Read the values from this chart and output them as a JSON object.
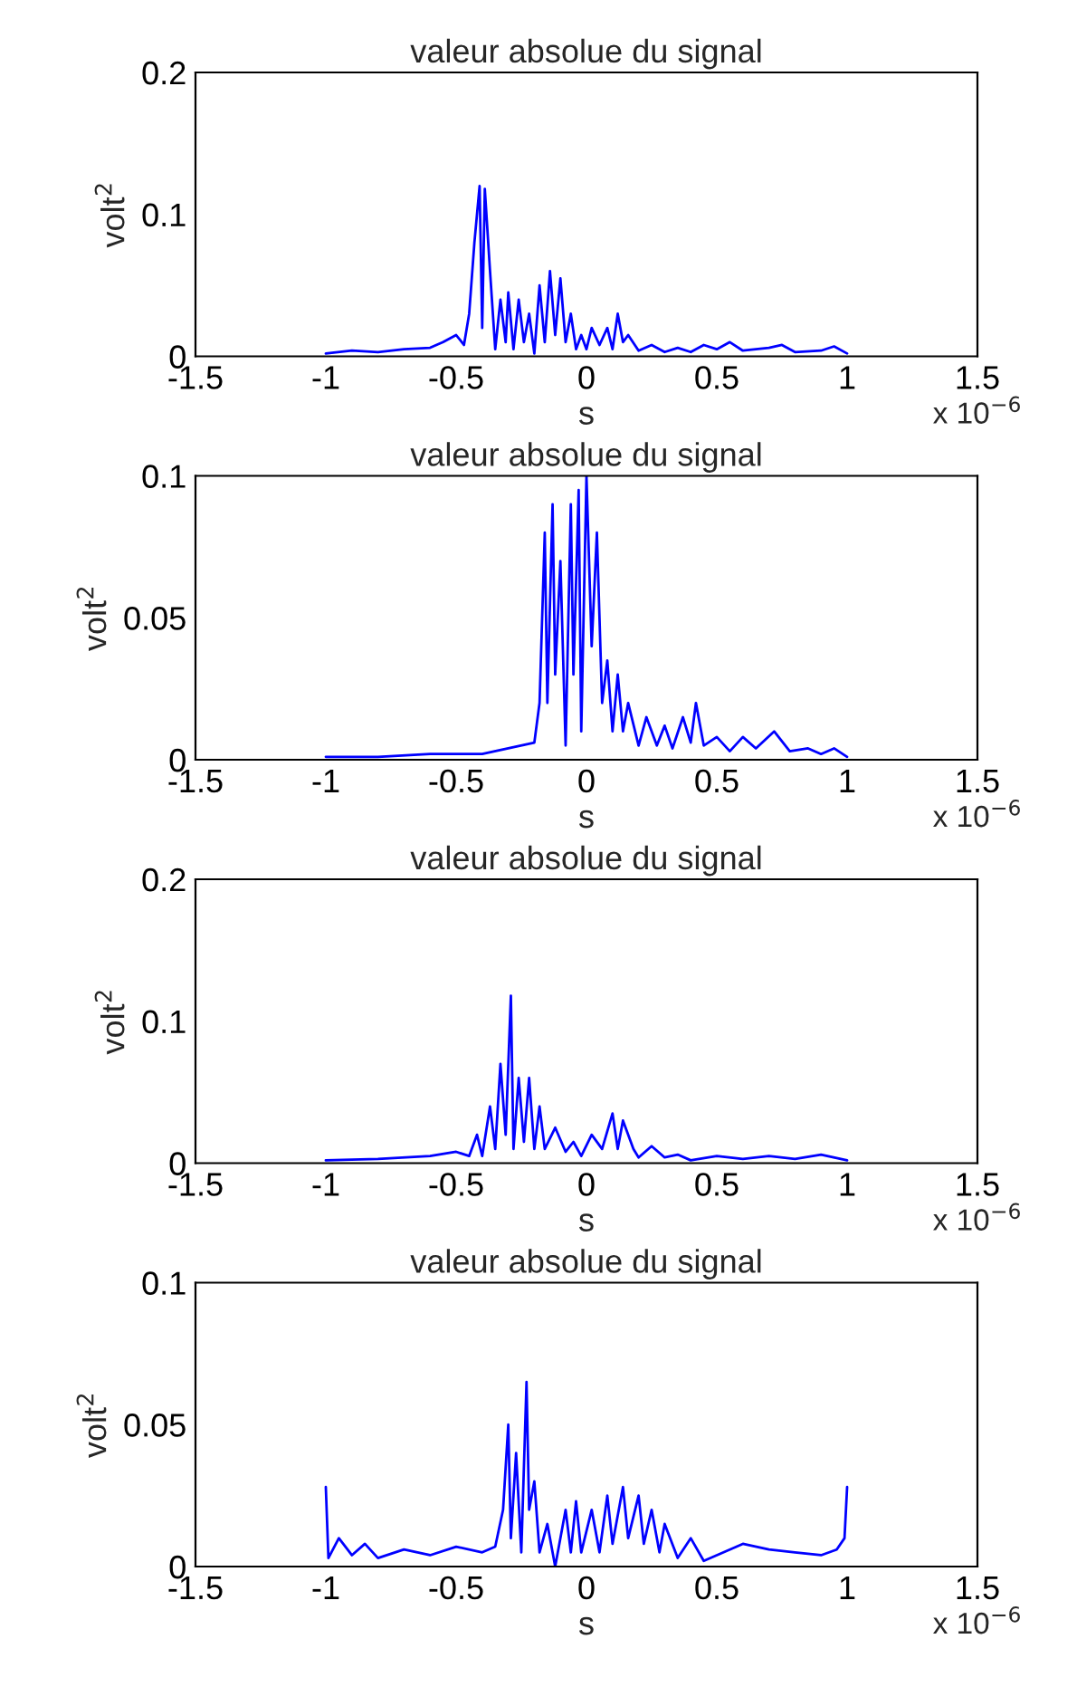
{
  "chart_data": [
    {
      "type": "line",
      "title": "valeur absolue du signal",
      "xlabel": "s",
      "ylabel": "volt$^{2}$",
      "annotations": [
        "x 10$^{−6}$"
      ],
      "grid": false,
      "marker": "none",
      "line_style": "solid",
      "xlim": [
        -1.5,
        1.5
      ],
      "xticks": [
        -1.5,
        -1,
        -0.5,
        0,
        0.5,
        1,
        1.5
      ],
      "ylim": [
        0,
        0.2
      ],
      "yticks": [
        0,
        0.1,
        0.2
      ],
      "series": [
        {
          "color": "#0000ff",
          "x": [
            -1.0,
            -0.9,
            -0.8,
            -0.7,
            -0.6,
            -0.55,
            -0.5,
            -0.47,
            -0.45,
            -0.43,
            -0.41,
            -0.4,
            -0.39,
            -0.37,
            -0.35,
            -0.33,
            -0.31,
            -0.3,
            -0.28,
            -0.26,
            -0.24,
            -0.22,
            -0.2,
            -0.18,
            -0.16,
            -0.14,
            -0.12,
            -0.1,
            -0.08,
            -0.06,
            -0.04,
            -0.02,
            0,
            0.02,
            0.05,
            0.08,
            0.1,
            0.12,
            0.14,
            0.16,
            0.2,
            0.25,
            0.3,
            0.35,
            0.4,
            0.45,
            0.5,
            0.55,
            0.6,
            0.7,
            0.75,
            0.8,
            0.9,
            0.95,
            1.0
          ],
          "values": [
            0.002,
            0.004,
            0.003,
            0.005,
            0.006,
            0.01,
            0.015,
            0.008,
            0.03,
            0.08,
            0.12,
            0.02,
            0.118,
            0.06,
            0.005,
            0.04,
            0.01,
            0.045,
            0.005,
            0.04,
            0.01,
            0.03,
            0.002,
            0.05,
            0.01,
            0.06,
            0.015,
            0.055,
            0.01,
            0.03,
            0.005,
            0.015,
            0.005,
            0.02,
            0.008,
            0.02,
            0.005,
            0.03,
            0.01,
            0.015,
            0.004,
            0.008,
            0.003,
            0.006,
            0.003,
            0.008,
            0.005,
            0.01,
            0.004,
            0.006,
            0.008,
            0.003,
            0.004,
            0.007,
            0.002
          ]
        }
      ]
    },
    {
      "type": "line",
      "title": "valeur absolue du signal",
      "xlabel": "s",
      "ylabel": "volt$^{2}$",
      "annotations": [
        "x 10$^{−6}$"
      ],
      "grid": false,
      "marker": "none",
      "line_style": "solid",
      "xlim": [
        -1.5,
        1.5
      ],
      "xticks": [
        -1.5,
        -1,
        -0.5,
        0,
        0.5,
        1,
        1.5
      ],
      "ylim": [
        0,
        0.1
      ],
      "yticks": [
        0,
        0.05,
        0.1
      ],
      "series": [
        {
          "color": "#0000ff",
          "x": [
            -1,
            -0.8,
            -0.6,
            -0.4,
            -0.3,
            -0.2,
            -0.18,
            -0.16,
            -0.15,
            -0.13,
            -0.12,
            -0.1,
            -0.08,
            -0.06,
            -0.05,
            -0.03,
            -0.02,
            0,
            0.02,
            0.04,
            0.06,
            0.08,
            0.1,
            0.12,
            0.14,
            0.16,
            0.2,
            0.23,
            0.27,
            0.3,
            0.33,
            0.37,
            0.4,
            0.42,
            0.45,
            0.5,
            0.55,
            0.6,
            0.65,
            0.72,
            0.78,
            0.85,
            0.9,
            0.95,
            1.0
          ],
          "values": [
            0.001,
            0.001,
            0.002,
            0.002,
            0.004,
            0.006,
            0.02,
            0.08,
            0.02,
            0.09,
            0.03,
            0.07,
            0.005,
            0.09,
            0.03,
            0.095,
            0.01,
            0.1,
            0.04,
            0.08,
            0.02,
            0.035,
            0.01,
            0.03,
            0.01,
            0.02,
            0.005,
            0.015,
            0.005,
            0.012,
            0.004,
            0.015,
            0.006,
            0.02,
            0.005,
            0.008,
            0.003,
            0.008,
            0.004,
            0.01,
            0.003,
            0.004,
            0.002,
            0.004,
            0.001
          ]
        }
      ]
    },
    {
      "type": "line",
      "title": "valeur absolue du signal",
      "xlabel": "s",
      "ylabel": "volt$^{2}$",
      "annotations": [
        "x 10$^{−6}$"
      ],
      "grid": false,
      "marker": "none",
      "line_style": "solid",
      "xlim": [
        -1.5,
        1.5
      ],
      "xticks": [
        -1.5,
        -1,
        -0.5,
        0,
        0.5,
        1,
        1.5
      ],
      "ylim": [
        0,
        0.2
      ],
      "yticks": [
        0,
        0.1,
        0.2
      ],
      "series": [
        {
          "color": "#0000ff",
          "x": [
            -1,
            -0.8,
            -0.6,
            -0.5,
            -0.45,
            -0.42,
            -0.4,
            -0.37,
            -0.35,
            -0.33,
            -0.31,
            -0.29,
            -0.28,
            -0.26,
            -0.24,
            -0.22,
            -0.2,
            -0.18,
            -0.16,
            -0.12,
            -0.08,
            -0.05,
            -0.02,
            0.02,
            0.06,
            0.1,
            0.12,
            0.14,
            0.18,
            0.2,
            0.25,
            0.3,
            0.35,
            0.4,
            0.5,
            0.6,
            0.7,
            0.8,
            0.9,
            1.0
          ],
          "values": [
            0.002,
            0.003,
            0.005,
            0.008,
            0.005,
            0.02,
            0.005,
            0.04,
            0.01,
            0.07,
            0.02,
            0.118,
            0.01,
            0.06,
            0.015,
            0.06,
            0.01,
            0.04,
            0.01,
            0.025,
            0.008,
            0.015,
            0.005,
            0.02,
            0.01,
            0.035,
            0.01,
            0.03,
            0.01,
            0.004,
            0.012,
            0.004,
            0.006,
            0.002,
            0.005,
            0.003,
            0.005,
            0.003,
            0.006,
            0.002
          ]
        }
      ]
    },
    {
      "type": "line",
      "title": "valeur absolue du signal",
      "xlabel": "s",
      "ylabel": "volt$^{2}$",
      "annotations": [
        "x 10$^{−6}$"
      ],
      "grid": false,
      "marker": "none",
      "line_style": "solid",
      "xlim": [
        -1.5,
        1.5
      ],
      "xticks": [
        -1.5,
        -1,
        -0.5,
        0,
        0.5,
        1,
        1.5
      ],
      "ylim": [
        0,
        0.1
      ],
      "yticks": [
        0,
        0.05,
        0.1
      ],
      "series": [
        {
          "color": "#0000ff",
          "x": [
            -1,
            -0.99,
            -0.95,
            -0.9,
            -0.85,
            -0.8,
            -0.7,
            -0.6,
            -0.5,
            -0.4,
            -0.35,
            -0.32,
            -0.3,
            -0.29,
            -0.27,
            -0.25,
            -0.23,
            -0.22,
            -0.2,
            -0.18,
            -0.15,
            -0.12,
            -0.08,
            -0.06,
            -0.04,
            -0.02,
            0.02,
            0.05,
            0.08,
            0.1,
            0.14,
            0.16,
            0.2,
            0.22,
            0.25,
            0.28,
            0.3,
            0.35,
            0.4,
            0.45,
            0.5,
            0.6,
            0.7,
            0.8,
            0.9,
            0.96,
            0.99,
            1.0
          ],
          "values": [
            0.028,
            0.003,
            0.01,
            0.004,
            0.008,
            0.003,
            0.006,
            0.004,
            0.007,
            0.005,
            0.007,
            0.02,
            0.05,
            0.01,
            0.04,
            0.005,
            0.065,
            0.02,
            0.03,
            0.005,
            0.015,
            0.0,
            0.02,
            0.005,
            0.023,
            0.005,
            0.02,
            0.005,
            0.025,
            0.008,
            0.028,
            0.01,
            0.025,
            0.008,
            0.02,
            0.005,
            0.015,
            0.003,
            0.01,
            0.002,
            0.004,
            0.008,
            0.006,
            0.005,
            0.004,
            0.006,
            0.01,
            0.028
          ]
        }
      ]
    }
  ]
}
